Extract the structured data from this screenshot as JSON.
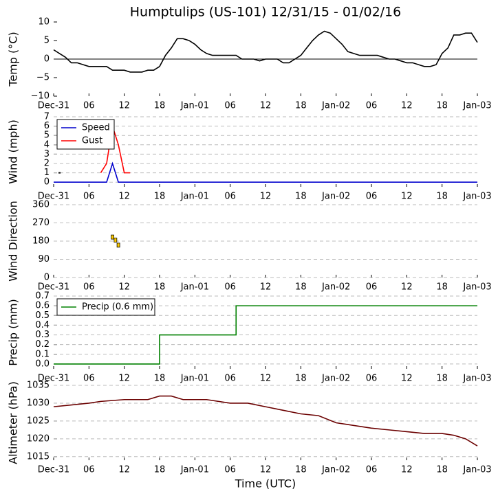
{
  "title": "Humptulips (US-101) 12/31/15 - 01/02/16",
  "xlabel": "Time (UTC)",
  "chart_data": [
    {
      "type": "line",
      "ylabel": "Temp (°C)",
      "xlim": [
        0,
        72
      ],
      "ylim": [
        -10,
        10
      ],
      "grid": false,
      "zero_line": true,
      "yticks": [
        {
          "value": -10,
          "label": "−10"
        },
        {
          "value": -5,
          "label": "−5"
        },
        0,
        5,
        10
      ],
      "xticks": [
        {
          "value": 0,
          "label": "Dec-31"
        },
        {
          "value": 6,
          "label": "06"
        },
        {
          "value": 12,
          "label": "12"
        },
        {
          "value": 18,
          "label": "18"
        },
        {
          "value": 24,
          "label": "Jan-01"
        },
        {
          "value": 30,
          "label": "06"
        },
        {
          "value": 36,
          "label": "12"
        },
        {
          "value": 42,
          "label": "18"
        },
        {
          "value": 48,
          "label": "Jan-02"
        },
        {
          "value": 54,
          "label": "06"
        },
        {
          "value": 60,
          "label": "12"
        },
        {
          "value": 66,
          "label": "18"
        },
        {
          "value": 72,
          "label": "Jan-03"
        }
      ],
      "x": [
        0,
        1,
        2,
        3,
        4,
        5,
        6,
        7,
        8,
        9,
        10,
        11,
        12,
        13,
        14,
        15,
        16,
        17,
        18,
        19,
        20,
        21,
        22,
        23,
        24,
        25,
        26,
        27,
        28,
        29,
        30,
        31,
        32,
        33,
        34,
        35,
        36,
        37,
        38,
        39,
        40,
        41,
        42,
        43,
        44,
        45,
        46,
        47,
        48,
        49,
        50,
        51,
        52,
        53,
        54,
        55,
        56,
        57,
        58,
        59,
        60,
        61,
        62,
        63,
        64,
        65,
        66,
        67,
        68,
        69,
        70,
        71,
        72
      ],
      "series": [
        {
          "color": "#000000",
          "values": [
            2.5,
            1.5,
            0.5,
            -1,
            -1,
            -1.5,
            -2,
            -2,
            -2,
            -2,
            -3,
            -3,
            -3,
            -3.5,
            -3.5,
            -3.5,
            -3,
            -3,
            -2,
            1,
            3,
            5.5,
            5.5,
            5,
            4,
            2.5,
            1.5,
            1,
            1,
            1,
            1,
            1,
            0,
            0,
            0,
            -0.5,
            0,
            0,
            0,
            -1,
            -1,
            0,
            1,
            3,
            5,
            6.5,
            7.5,
            7,
            5.5,
            4,
            2,
            1.5,
            1,
            1,
            1,
            1,
            0.5,
            0,
            0,
            -0.5,
            -1,
            -1,
            -1.5,
            -2,
            -2,
            -1.5,
            1.5,
            3,
            6.5,
            6.5,
            7,
            7,
            4.5
          ]
        }
      ]
    },
    {
      "type": "line",
      "ylabel": "Wind (mph)",
      "xlim": [
        0,
        72
      ],
      "ylim": [
        -0.5,
        7
      ],
      "grid": true,
      "legend": "upper left",
      "yticks": [
        0,
        1,
        2,
        3,
        4,
        5,
        6,
        7
      ],
      "xticks": [
        {
          "value": 0,
          "label": "Dec-31"
        },
        {
          "value": 6,
          "label": "06"
        },
        {
          "value": 12,
          "label": "12"
        },
        {
          "value": 18,
          "label": "18"
        },
        {
          "value": 24,
          "label": "Jan-01"
        },
        {
          "value": 30,
          "label": "06"
        },
        {
          "value": 36,
          "label": "12"
        },
        {
          "value": 42,
          "label": "18"
        },
        {
          "value": 48,
          "label": "Jan-02"
        },
        {
          "value": 54,
          "label": "06"
        },
        {
          "value": 60,
          "label": "12"
        },
        {
          "value": 66,
          "label": "18"
        },
        {
          "value": 72,
          "label": "Jan-03"
        }
      ],
      "x": [
        0,
        1,
        2,
        3,
        4,
        5,
        6,
        7,
        8,
        9,
        10,
        11,
        12,
        13,
        14,
        15,
        16,
        17,
        18,
        19,
        20,
        21,
        22,
        23,
        24,
        25,
        26,
        27,
        28,
        29,
        30,
        31,
        32,
        33,
        34,
        35,
        36,
        37,
        38,
        39,
        40,
        41,
        42,
        43,
        44,
        45,
        46,
        47,
        48,
        49,
        50,
        51,
        52,
        53,
        54,
        55,
        56,
        57,
        58,
        59,
        60,
        61,
        62,
        63,
        64,
        65,
        66,
        67,
        68,
        69,
        70,
        71,
        72
      ],
      "series": [
        {
          "name": "Speed",
          "color": "#0000cc",
          "values": [
            0,
            0,
            0,
            0,
            0,
            0,
            0,
            0,
            0,
            0,
            2,
            0,
            0,
            0,
            0,
            0,
            0,
            0,
            0,
            0,
            0,
            0,
            0,
            0,
            0,
            0,
            0,
            0,
            0,
            0,
            0,
            0,
            0,
            0,
            0,
            0,
            0,
            0,
            0,
            0,
            0,
            0,
            0,
            0,
            0,
            0,
            0,
            0,
            0,
            0,
            0,
            0,
            0,
            0,
            0,
            0,
            0,
            0,
            0,
            0,
            0,
            0,
            0,
            0,
            0,
            0,
            0,
            0,
            0,
            0,
            0,
            0,
            0
          ]
        },
        {
          "name": "Gust",
          "color": "#ff0000",
          "values": [
            null,
            1,
            null,
            null,
            null,
            null,
            null,
            null,
            1,
            2,
            6,
            4,
            1,
            1,
            null,
            null,
            null,
            null,
            null,
            null,
            null,
            null,
            null,
            null,
            null,
            null,
            null,
            null,
            null,
            null,
            null,
            null,
            null,
            null,
            null,
            null,
            null,
            null,
            null,
            null,
            null,
            null,
            null,
            null,
            null,
            null,
            null,
            null,
            null,
            null,
            null,
            null,
            null,
            null,
            null,
            null,
            null,
            null,
            null,
            null,
            null,
            null,
            null,
            null,
            null,
            null,
            null,
            null,
            null,
            null,
            null,
            null,
            null
          ]
        }
      ]
    },
    {
      "type": "scatter",
      "ylabel": "Wind Direction",
      "xlim": [
        0,
        72
      ],
      "ylim": [
        0,
        360
      ],
      "grid": true,
      "yticks": [
        0,
        90,
        180,
        270,
        360
      ],
      "xticks": [
        {
          "value": 0,
          "label": "Dec-31"
        },
        {
          "value": 6,
          "label": "06"
        },
        {
          "value": 12,
          "label": "12"
        },
        {
          "value": 18,
          "label": "18"
        },
        {
          "value": 24,
          "label": "Jan-01"
        },
        {
          "value": 30,
          "label": "06"
        },
        {
          "value": 36,
          "label": "12"
        },
        {
          "value": 42,
          "label": "18"
        },
        {
          "value": 48,
          "label": "Jan-02"
        },
        {
          "value": 54,
          "label": "06"
        },
        {
          "value": 60,
          "label": "12"
        },
        {
          "value": 66,
          "label": "18"
        },
        {
          "value": 72,
          "label": "Jan-03"
        }
      ],
      "x": [
        10,
        10.5,
        11
      ],
      "series": [
        {
          "color": "#ffcc00",
          "values": [
            200,
            185,
            160
          ]
        }
      ]
    },
    {
      "type": "line",
      "ylabel": "Precip (mm)",
      "xlim": [
        0,
        72
      ],
      "ylim": [
        -0.05,
        0.7
      ],
      "grid": true,
      "legend": "upper left",
      "yticks": [
        {
          "value": 0,
          "label": "0.0"
        },
        0.1,
        0.2,
        0.3,
        0.4,
        0.5,
        0.6,
        0.7
      ],
      "xticks": [
        {
          "value": 0,
          "label": "Dec-31"
        },
        {
          "value": 6,
          "label": "06"
        },
        {
          "value": 12,
          "label": "12"
        },
        {
          "value": 18,
          "label": "18"
        },
        {
          "value": 24,
          "label": "Jan-01"
        },
        {
          "value": 30,
          "label": "06"
        },
        {
          "value": 36,
          "label": "12"
        },
        {
          "value": 42,
          "label": "18"
        },
        {
          "value": 48,
          "label": "Jan-02"
        },
        {
          "value": 54,
          "label": "06"
        },
        {
          "value": 60,
          "label": "12"
        },
        {
          "value": 66,
          "label": "18"
        },
        {
          "value": 72,
          "label": "Jan-03"
        }
      ],
      "x": [
        0,
        18,
        18,
        31,
        31,
        72
      ],
      "series": [
        {
          "name": "Precip (0.6 mm)",
          "color": "#008000",
          "values": [
            0,
            0,
            0.3,
            0.3,
            0.6,
            0.6
          ]
        }
      ]
    },
    {
      "type": "line",
      "ylabel": "Altimeter (hPa)",
      "xlim": [
        0,
        72
      ],
      "ylim": [
        1014,
        1035
      ],
      "grid": true,
      "yticks": [
        1015,
        1020,
        1025,
        1030,
        1035
      ],
      "xticks": [
        {
          "value": 0,
          "label": "Dec-31"
        },
        {
          "value": 6,
          "label": "06"
        },
        {
          "value": 12,
          "label": "12"
        },
        {
          "value": 18,
          "label": "18"
        },
        {
          "value": 24,
          "label": "Jan-01"
        },
        {
          "value": 30,
          "label": "06"
        },
        {
          "value": 36,
          "label": "12"
        },
        {
          "value": 42,
          "label": "18"
        },
        {
          "value": 48,
          "label": "Jan-02"
        },
        {
          "value": 54,
          "label": "06"
        },
        {
          "value": 60,
          "label": "12"
        },
        {
          "value": 66,
          "label": "18"
        },
        {
          "value": 72,
          "label": "Jan-03"
        }
      ],
      "x": [
        0,
        3,
        6,
        8,
        12,
        16,
        18,
        20,
        22,
        24,
        26,
        30,
        33,
        36,
        39,
        42,
        45,
        48,
        50,
        54,
        57,
        60,
        63,
        66,
        68,
        70,
        72
      ],
      "series": [
        {
          "color": "#6b0000",
          "values": [
            1029,
            1029.5,
            1030,
            1030.5,
            1031,
            1031,
            1032,
            1032,
            1031,
            1031,
            1031,
            1030,
            1030,
            1029,
            1028,
            1027,
            1026.5,
            1024.5,
            1024,
            1023,
            1022.5,
            1022,
            1021.5,
            1021.5,
            1021,
            1020,
            1018
          ]
        }
      ]
    }
  ]
}
